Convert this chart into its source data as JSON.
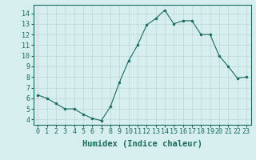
{
  "x": [
    0,
    1,
    2,
    3,
    4,
    5,
    6,
    7,
    8,
    9,
    10,
    11,
    12,
    13,
    14,
    15,
    16,
    17,
    18,
    19,
    20,
    21,
    22,
    23
  ],
  "y": [
    6.3,
    6.0,
    5.5,
    5.0,
    5.0,
    4.5,
    4.1,
    3.9,
    5.2,
    7.5,
    9.5,
    11.0,
    12.9,
    13.5,
    14.3,
    13.0,
    13.3,
    13.3,
    12.0,
    12.0,
    10.0,
    9.0,
    7.9,
    8.0
  ],
  "line_color": "#1a6b5e",
  "marker": "o",
  "marker_size": 2.0,
  "bg_color": "#d6eeee",
  "grid_color": "#b8d8d8",
  "xlabel": "Humidex (Indice chaleur)",
  "xlabel_fontsize": 7.5,
  "xlim": [
    -0.5,
    23.5
  ],
  "ylim": [
    3.5,
    14.8
  ],
  "yticks": [
    4,
    5,
    6,
    7,
    8,
    9,
    10,
    11,
    12,
    13,
    14
  ],
  "xticks": [
    0,
    1,
    2,
    3,
    4,
    5,
    6,
    7,
    8,
    9,
    10,
    11,
    12,
    13,
    14,
    15,
    16,
    17,
    18,
    19,
    20,
    21,
    22,
    23
  ],
  "xtick_labels": [
    "0",
    "1",
    "2",
    "3",
    "4",
    "5",
    "6",
    "7",
    "8",
    "9",
    "10",
    "11",
    "12",
    "13",
    "14",
    "15",
    "16",
    "17",
    "18",
    "19",
    "20",
    "21",
    "22",
    "23"
  ],
  "tick_fontsize": 6.0,
  "spine_color": "#1a6b5e"
}
